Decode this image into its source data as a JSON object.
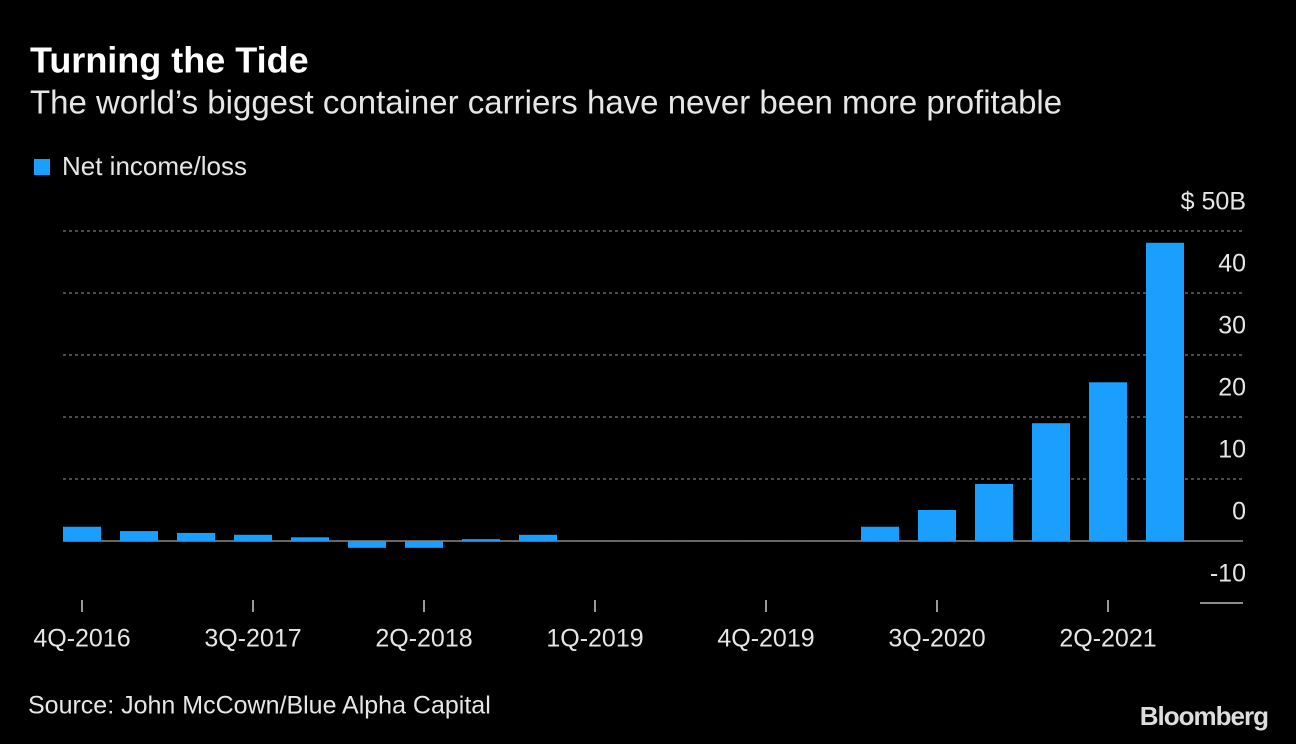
{
  "chart_data": {
    "type": "bar",
    "title": "Turning the Tide",
    "subtitle": "The world’s biggest container carriers have never been more profitable",
    "categories": [
      "4Q-2016",
      null,
      null,
      "3Q-2017",
      null,
      null,
      "2Q-2018",
      null,
      null,
      "1Q-2019",
      null,
      null,
      "4Q-2019",
      null,
      null,
      "3Q-2020",
      null,
      null,
      "2Q-2021",
      null
    ],
    "series": [
      {
        "name": "Net income/loss",
        "color": "#1a9fff",
        "values": [
          2.3,
          1.6,
          1.3,
          1.0,
          0.6,
          -1.1,
          -1.1,
          0.3,
          1.0,
          -0.1,
          -0.1,
          -0.1,
          -0.1,
          -0.1,
          2.3,
          5.0,
          9.2,
          19.0,
          25.6,
          48.1
        ]
      }
    ],
    "ylim": [
      -10,
      50
    ],
    "yticks": [
      -10,
      0,
      10,
      20,
      30,
      40,
      {
        "value": 50,
        "label": "$ 50B"
      }
    ],
    "grid": true,
    "source": "Source: John McCown/Blue Alpha Capital",
    "brand": "Bloomberg"
  }
}
